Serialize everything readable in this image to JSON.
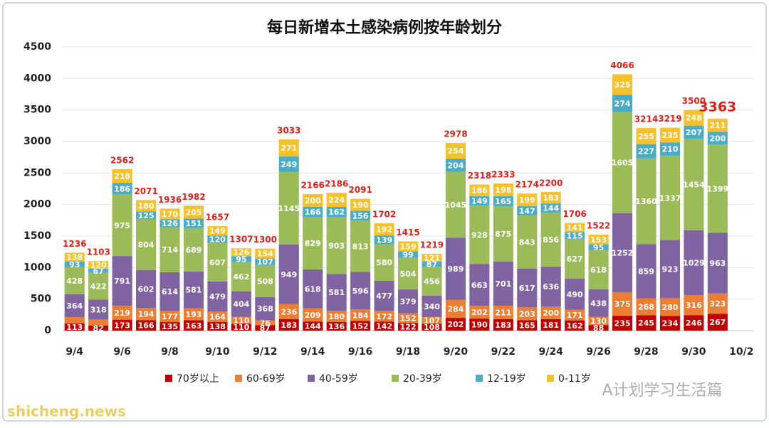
{
  "chart_data": {
    "type": "stacked_bar",
    "title": "每日新增本土感染病例按年龄划分",
    "categories": [
      "9/4",
      null,
      "9/6",
      null,
      "9/8",
      null,
      "9/10",
      null,
      "9/12",
      null,
      "9/14",
      null,
      "9/16",
      null,
      "9/18",
      null,
      "9/20",
      null,
      "9/22",
      null,
      "9/24",
      null,
      "9/26",
      null,
      "9/28",
      null,
      "9/30",
      null,
      "10/2"
    ],
    "series": [
      {
        "name": "70岁以上",
        "color": "#c00000",
        "values": [
          113,
          82,
          173,
          166,
          135,
          163,
          138,
          110,
          87,
          183,
          144,
          136,
          152,
          142,
          122,
          108,
          202,
          190,
          183,
          165,
          181,
          162,
          88,
          235,
          245,
          234,
          246,
          267,
          null
        ]
      },
      {
        "name": "60-69岁",
        "color": "#ed7d31",
        "values": [
          100,
          94,
          219,
          194,
          177,
          193,
          164,
          110,
          76,
          236,
          209,
          180,
          184,
          172,
          152,
          107,
          284,
          202,
          211,
          203,
          200,
          171,
          130,
          375,
          268,
          280,
          316,
          323,
          null
        ],
        "value_labels": [
          null,
          null,
          219,
          194,
          177,
          193,
          164,
          110,
          76,
          236,
          209,
          180,
          184,
          172,
          152,
          107,
          284,
          202,
          211,
          203,
          200,
          171,
          130,
          375,
          268,
          280,
          316,
          323,
          null
        ]
      },
      {
        "name": "40-59岁",
        "color": "#8064a2",
        "values": [
          364,
          318,
          791,
          602,
          614,
          581,
          479,
          404,
          368,
          949,
          618,
          581,
          596,
          477,
          379,
          340,
          989,
          663,
          701,
          617,
          636,
          490,
          438,
          1252,
          859,
          923,
          1029,
          963,
          null
        ]
      },
      {
        "name": "20-39岁",
        "color": "#9bbb59",
        "values": [
          428,
          422,
          975,
          804,
          714,
          689,
          607,
          462,
          508,
          1145,
          829,
          903,
          813,
          580,
          504,
          456,
          1045,
          928,
          875,
          843,
          856,
          627,
          618,
          1605,
          1360,
          1337,
          1454,
          1399,
          null
        ]
      },
      {
        "name": "12-19岁",
        "color": "#4bacc6",
        "values": [
          93,
          67,
          186,
          125,
          126,
          151,
          120,
          95,
          107,
          249,
          166,
          162,
          156,
          139,
          99,
          87,
          204,
          149,
          165,
          147,
          144,
          115,
          95,
          274,
          227,
          210,
          207,
          200,
          null
        ]
      },
      {
        "name": "0-11岁",
        "color": "#f5c22b",
        "values": [
          138,
          120,
          218,
          180,
          170,
          205,
          149,
          126,
          154,
          271,
          200,
          224,
          190,
          192,
          159,
          121,
          254,
          186,
          198,
          199,
          183,
          141,
          153,
          325,
          255,
          235,
          248,
          211,
          null
        ]
      }
    ],
    "totals": [
      1236,
      1103,
      2562,
      2071,
      1936,
      1982,
      1657,
      1307,
      1300,
      3033,
      2166,
      2186,
      2091,
      1702,
      1415,
      1219,
      2978,
      2318,
      2333,
      2174,
      2200,
      1706,
      1522,
      4066,
      3214,
      3219,
      3500,
      3363,
      null
    ],
    "ylim": [
      0,
      4500
    ],
    "yticks": [
      0,
      500,
      1000,
      1500,
      2000,
      2500,
      3000,
      3500,
      4000,
      4500
    ],
    "grid": true,
    "legend": "bottom",
    "watermark": "A计划学习生活篇",
    "site": "shicheng.news"
  }
}
